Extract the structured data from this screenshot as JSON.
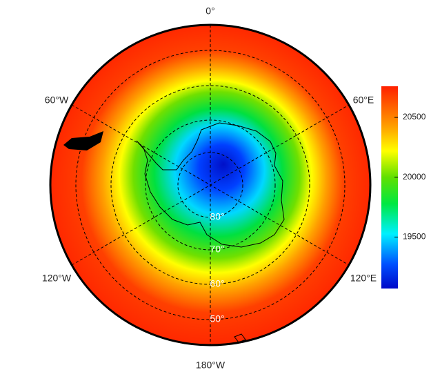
{
  "map": {
    "longitude_labels": [
      "0°",
      "60°E",
      "120°E",
      "180°W",
      "120°W",
      "60°W"
    ],
    "latitude_labels": [
      "80°",
      "70°",
      "60°",
      "50°"
    ]
  },
  "colorbar": {
    "lim": [
      19070,
      20760
    ],
    "ticks": [
      19500,
      20000,
      20500
    ]
  }
}
